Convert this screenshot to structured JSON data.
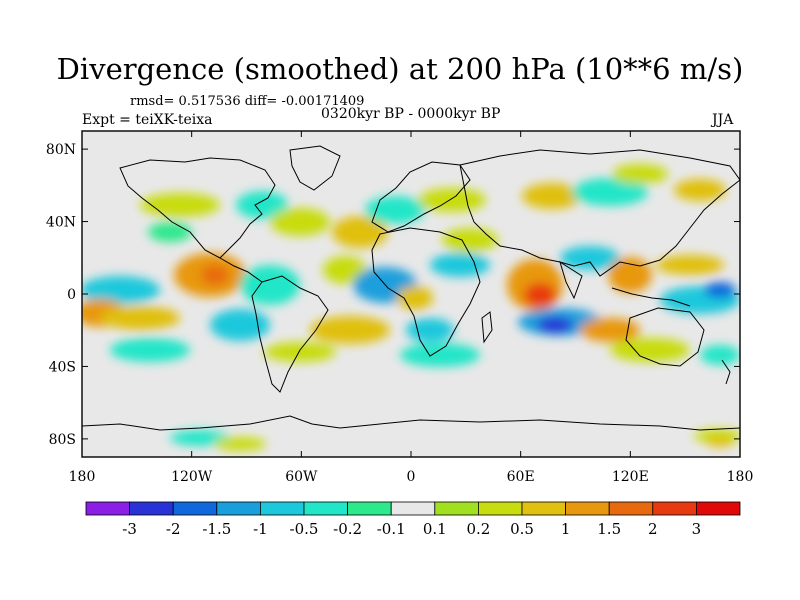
{
  "title": "Divergence (smoothed) at 200 hPa (10**6 m/s)",
  "stats": "rmsd= 0.517536 diff= -0.00171409",
  "experiment": "Expt = teiXK-teixa",
  "period": "0320kyr BP - 0000kyr BP",
  "season": "JJA",
  "map": {
    "lat_range": [
      -90,
      90
    ],
    "lon_range": [
      -180,
      180
    ],
    "y_ticks": [
      "80N",
      "40N",
      "0",
      "40S",
      "80S"
    ],
    "x_ticks": [
      "180",
      "120W",
      "60W",
      "0",
      "60E",
      "120E",
      "180"
    ]
  },
  "colorbar": {
    "labels": [
      "-3",
      "-2",
      "-1.5",
      "-1",
      "-0.5",
      "-0.2",
      "-0.1",
      "0.1",
      "0.2",
      "0.5",
      "1",
      "1.5",
      "2",
      "3"
    ],
    "colors": [
      "#8b1fe6",
      "#2832d6",
      "#1068dc",
      "#1a9fdc",
      "#1ec8dc",
      "#22e6c8",
      "#2ee88c",
      "#e8e8e8",
      "#a0e020",
      "#c8dc10",
      "#e0c010",
      "#e89810",
      "#e86a10",
      "#e83a10",
      "#e00808"
    ]
  },
  "palette": {
    "neutral": "#e8e8e8",
    "coast": "#000000"
  }
}
